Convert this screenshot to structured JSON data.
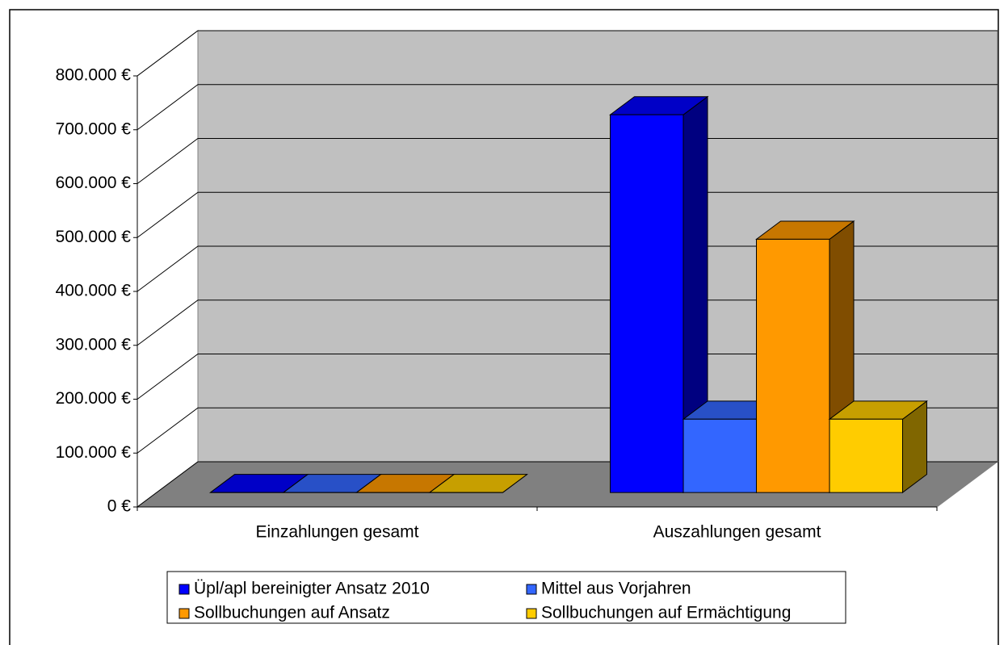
{
  "chart_data": {
    "type": "bar3d",
    "categories": [
      "Einzahlungen gesamt",
      "Auszahlungen gesamt"
    ],
    "series": [
      {
        "name": "Üpl/apl bereinigter Ansatz 2010",
        "color": "#0000ff",
        "values": [
          0,
          701000
        ]
      },
      {
        "name": "Mittel aus Vorjahren",
        "color": "#3366ff",
        "values": [
          0,
          136000
        ]
      },
      {
        "name": "Sollbuchungen auf Ansatz",
        "color": "#ff9900",
        "values": [
          0,
          470000
        ]
      },
      {
        "name": "Sollbuchungen auf Ermächtigung",
        "color": "#ffcc00",
        "values": [
          0,
          136000
        ]
      }
    ],
    "ylim": [
      0,
      800000
    ],
    "yticks": [
      {
        "value": 0,
        "label": "0 €"
      },
      {
        "value": 100000,
        "label": "100.000 €"
      },
      {
        "value": 200000,
        "label": "200.000 €"
      },
      {
        "value": 300000,
        "label": "300.000 €"
      },
      {
        "value": 400000,
        "label": "400.000 €"
      },
      {
        "value": 500000,
        "label": "500.000 €"
      },
      {
        "value": 600000,
        "label": "600.000 €"
      },
      {
        "value": 700000,
        "label": "700.000 €"
      },
      {
        "value": 800000,
        "label": "800.000 €"
      }
    ],
    "grid": true,
    "legend": "bottom"
  }
}
